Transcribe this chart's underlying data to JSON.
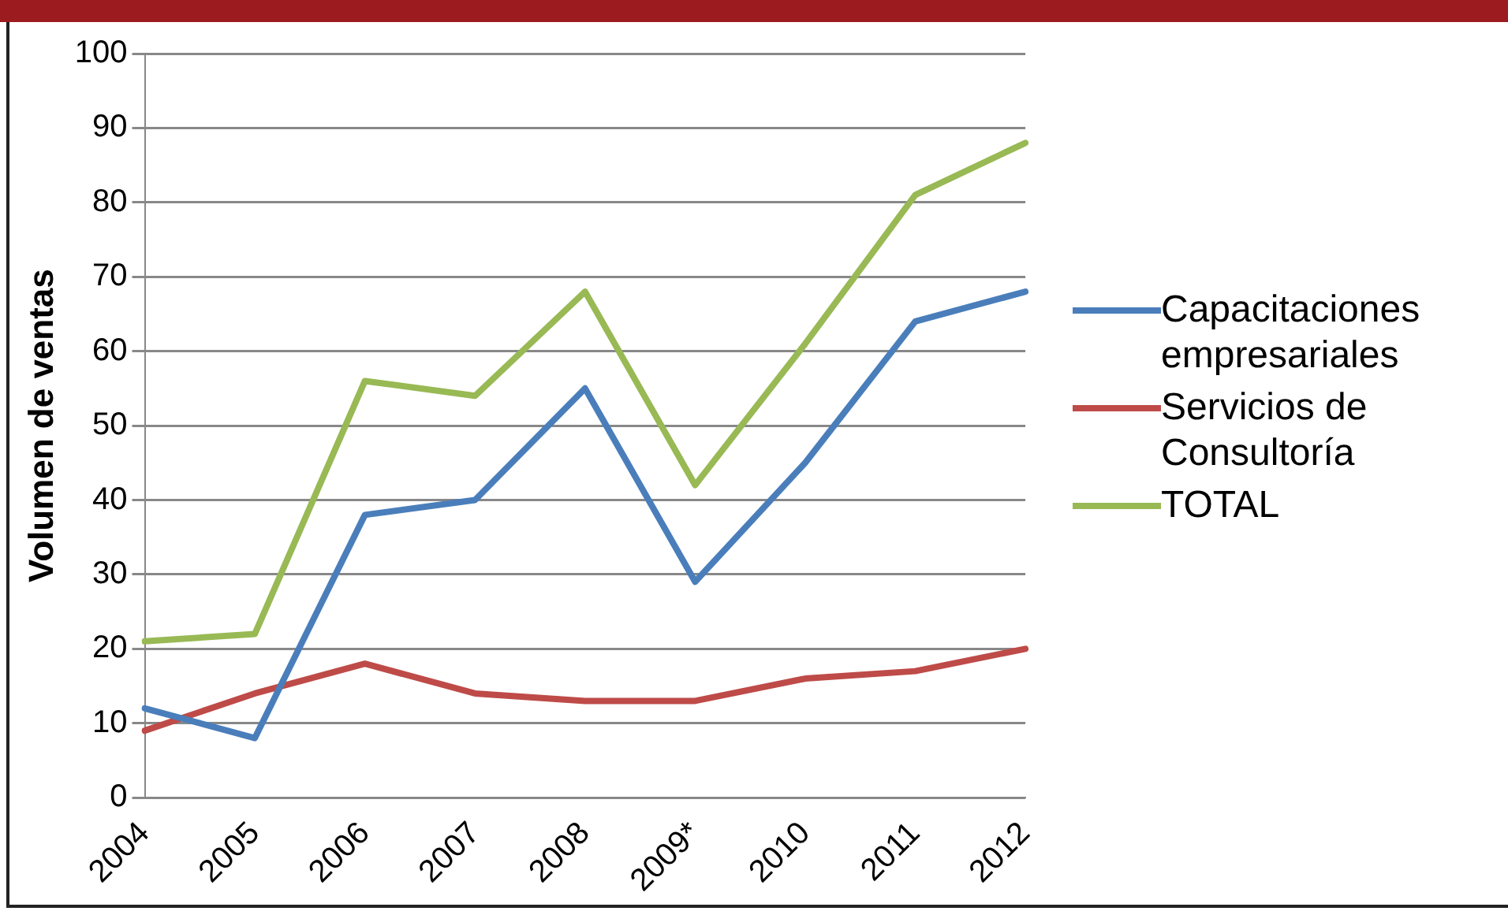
{
  "chart_data": {
    "type": "line",
    "ylabel": "Volumen de ventas",
    "categories": [
      "2004",
      "2005",
      "2006",
      "2007",
      "2008",
      "2009*",
      "2010",
      "2011",
      "2012"
    ],
    "series": [
      {
        "name": "Capacitaciones empresariales",
        "color": "#4a7ebb",
        "values": [
          12,
          8,
          38,
          40,
          55,
          29,
          45,
          64,
          68
        ]
      },
      {
        "name": "Servicios de Consultoría",
        "color": "#be4b48",
        "values": [
          9,
          14,
          18,
          14,
          13,
          13,
          16,
          17,
          20
        ]
      },
      {
        "name": "TOTAL",
        "color": "#98b954",
        "values": [
          21,
          22,
          56,
          54,
          68,
          42,
          61,
          81,
          88
        ]
      }
    ],
    "ylim": [
      0,
      100
    ],
    "yticks": [
      0,
      10,
      20,
      30,
      40,
      50,
      60,
      70,
      80,
      90,
      100
    ],
    "grid": "y",
    "legend": "right",
    "marker": "none",
    "line_style": "solid"
  }
}
